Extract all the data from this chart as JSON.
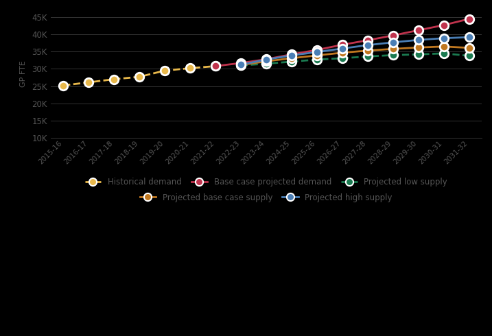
{
  "years": [
    "2015-16",
    "2016-17",
    "2017-18",
    "2018-19",
    "2019-20",
    "2020-21",
    "2021-22",
    "2022-23",
    "2023-24",
    "2024-25",
    "2025-26",
    "2026-27",
    "2027-28",
    "2028-29",
    "2029-30",
    "2030-31",
    "2031-32"
  ],
  "historical_demand": [
    25200,
    26100,
    27000,
    27700,
    29500,
    30200,
    30800,
    null,
    null,
    null,
    null,
    null,
    null,
    null,
    null,
    null,
    null
  ],
  "base_case_demand": [
    null,
    null,
    null,
    null,
    null,
    null,
    30800,
    31700,
    32800,
    34200,
    35500,
    37000,
    38300,
    39700,
    41200,
    42700,
    44500
  ],
  "low_supply": [
    null,
    null,
    null,
    null,
    null,
    null,
    null,
    31000,
    31500,
    32100,
    32700,
    33100,
    33600,
    34000,
    34200,
    34500,
    33800
  ],
  "base_supply": [
    null,
    null,
    null,
    null,
    null,
    null,
    null,
    31100,
    32200,
    33100,
    33900,
    34700,
    35300,
    35800,
    36200,
    36500,
    36100
  ],
  "high_supply": [
    null,
    null,
    null,
    null,
    null,
    null,
    null,
    31200,
    32700,
    33900,
    34900,
    35900,
    36900,
    37700,
    38400,
    38900,
    39200
  ],
  "colors": {
    "historical_demand": "#E8B84B",
    "base_case_demand": "#C0334D",
    "low_supply": "#1A7A50",
    "base_supply": "#C07820",
    "high_supply": "#4A7EB5"
  },
  "ylabel": "GP FTE",
  "ylim": [
    10000,
    47000
  ],
  "yticks": [
    10000,
    15000,
    20000,
    25000,
    30000,
    35000,
    40000,
    45000
  ],
  "fig_bg": "#000000",
  "plot_bg": "#000000",
  "text_color": "#555555",
  "grid_color": "#333333",
  "legend": [
    {
      "label": "Historical demand",
      "color": "#E8B84B",
      "ls": "--"
    },
    {
      "label": "Base case projected demand",
      "color": "#C0334D",
      "ls": "-"
    },
    {
      "label": "Projected low supply",
      "color": "#1A7A50",
      "ls": "--"
    },
    {
      "label": "Projected base case supply",
      "color": "#C07820",
      "ls": "-"
    },
    {
      "label": "Projected high supply",
      "color": "#4A7EB5",
      "ls": "-"
    }
  ]
}
